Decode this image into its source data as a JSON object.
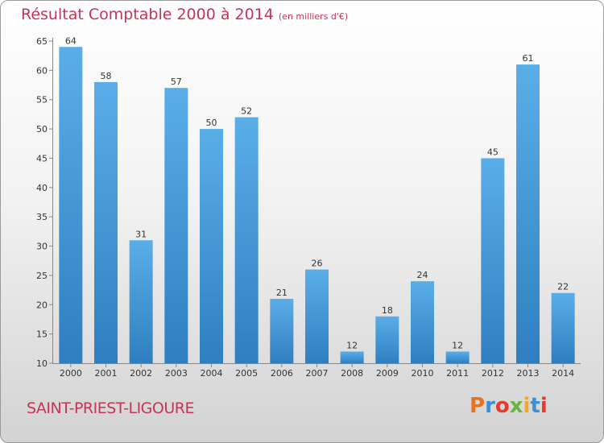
{
  "chart_data": {
    "type": "bar",
    "title": "Résultat Comptable 2000 à 2014",
    "subtitle": "(en milliers d'€)",
    "categories": [
      "2000",
      "2001",
      "2002",
      "2003",
      "2004",
      "2005",
      "2006",
      "2007",
      "2008",
      "2009",
      "2010",
      "2011",
      "2012",
      "2013",
      "2014"
    ],
    "values": [
      64,
      58,
      31,
      57,
      50,
      52,
      21,
      26,
      12,
      18,
      24,
      12,
      45,
      61,
      22
    ],
    "ylim": [
      10,
      65
    ],
    "yticks": [
      10,
      15,
      20,
      25,
      30,
      35,
      40,
      45,
      50,
      55,
      60,
      65
    ],
    "grid": false,
    "bar_color": "#4d9fde"
  },
  "footer": {
    "commune": "SAINT-PRIEST-LIGOURE",
    "logo": "Proxiti",
    "logo_colors": [
      "#e8731e",
      "#3b8ed8",
      "#e53b2c",
      "#6ab540",
      "#f0a72b",
      "#3b8ed8",
      "#e53b2c"
    ]
  }
}
